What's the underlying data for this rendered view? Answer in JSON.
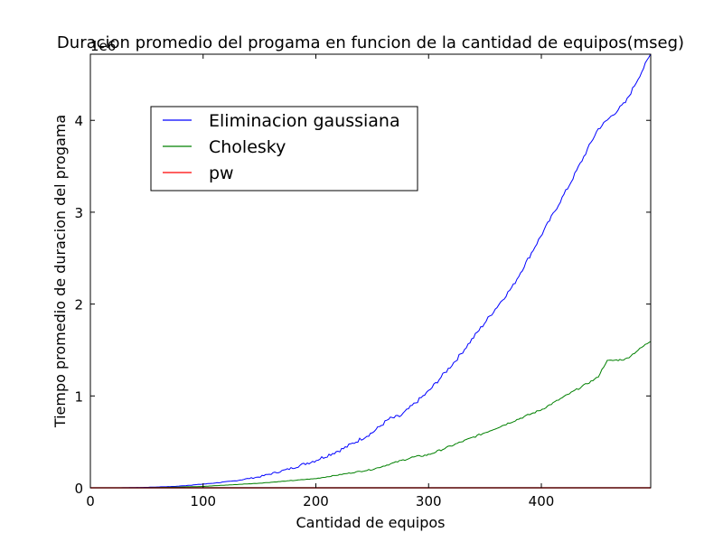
{
  "chart_data": {
    "type": "line",
    "title": "Duracion promedio del progama en funcion de la cantidad de equipos(mseg)",
    "xlabel": "Cantidad de equipos",
    "ylabel": "Tiempo promedio de duracion del progama",
    "offset_label": "1e6",
    "xlim": [
      0,
      497
    ],
    "ylim": [
      0,
      4.72
    ],
    "y_scale_factor": 1000000,
    "xticks": [
      0,
      100,
      200,
      300,
      400
    ],
    "yticks": [
      0,
      1,
      2,
      3,
      4
    ],
    "grid": false,
    "legend_position": "upper-left",
    "series": [
      {
        "name": "Eliminacion gaussiana",
        "color": "#0000ff",
        "x": [
          0,
          25,
          50,
          75,
          100,
          125,
          150,
          175,
          200,
          225,
          250,
          265,
          275,
          300,
          325,
          350,
          375,
          400,
          425,
          450,
          475,
          497
        ],
        "y": [
          0.0,
          0.0,
          0.005,
          0.015,
          0.04,
          0.07,
          0.12,
          0.2,
          0.3,
          0.43,
          0.6,
          0.75,
          0.78,
          1.05,
          1.4,
          1.8,
          2.2,
          2.75,
          3.3,
          3.9,
          4.2,
          4.72
        ]
      },
      {
        "name": "Cholesky",
        "color": "#008000",
        "x": [
          0,
          50,
          100,
          150,
          200,
          250,
          285,
          300,
          350,
          400,
          450,
          458,
          475,
          497
        ],
        "y": [
          0.0,
          0.0,
          0.015,
          0.05,
          0.1,
          0.2,
          0.33,
          0.36,
          0.6,
          0.85,
          1.2,
          1.38,
          1.4,
          1.6
        ]
      },
      {
        "name": "pw",
        "color": "#ff0000",
        "x": [
          0,
          497
        ],
        "y": [
          0.0,
          0.0
        ]
      }
    ]
  }
}
